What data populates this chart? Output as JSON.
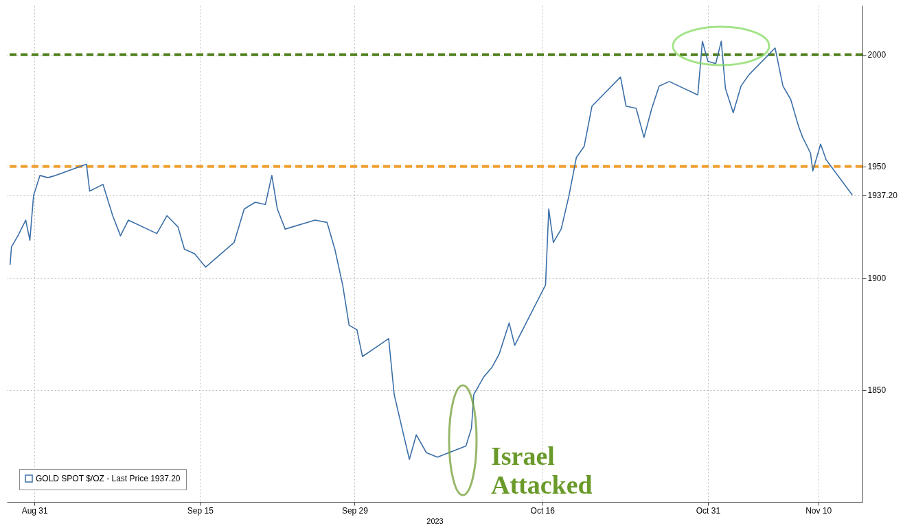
{
  "chart_data": {
    "type": "line",
    "xlabel": "2023",
    "x": [
      "2023-08-28T19:00",
      "2023-08-28T22:00",
      "2023-08-29T12:00",
      "2023-08-30T05:00",
      "2023-08-30T14:00",
      "2023-08-30T22:00",
      "2023-08-31T12:00",
      "2023-09-01T05:00",
      "2023-09-01T22:00",
      "2023-09-04T17:00",
      "2023-09-05T00:00",
      "2023-09-06T05:00",
      "2023-09-07T02:00",
      "2023-09-07T19:00",
      "2023-09-08T12:00",
      "2023-09-11T02:00",
      "2023-09-12T00:00",
      "2023-09-13T00:00",
      "2023-09-13T14:00",
      "2023-09-14T12:00",
      "2023-09-15T12:00",
      "2023-09-18T02:00",
      "2023-09-19T00:00",
      "2023-09-20T00:00",
      "2023-09-20T22:00",
      "2023-09-21T12:00",
      "2023-09-22T00:00",
      "2023-09-22T17:00",
      "2023-09-25T10:00",
      "2023-09-26T12:00",
      "2023-09-27T05:00",
      "2023-09-27T22:00",
      "2023-09-28T12:00",
      "2023-09-29T05:00",
      "2023-09-29T17:00",
      "2023-10-02T02:00",
      "2023-10-02T14:00",
      "2023-10-03T07:00",
      "2023-10-03T23:00",
      "2023-10-04T14:00",
      "2023-10-05T12:00",
      "2023-10-06T12:00",
      "2023-10-09T02:00",
      "2023-10-09T14:00",
      "2023-10-09T19:00",
      "2023-10-10T17:00",
      "2023-10-11T10:00",
      "2023-10-12T02:00",
      "2023-10-13T00:00",
      "2023-10-13T12:00",
      "2023-10-16T07:00",
      "2023-10-16T14:00",
      "2023-10-17T00:00",
      "2023-10-17T17:00",
      "2023-10-18T10:00",
      "2023-10-19T02:00",
      "2023-10-19T19:00",
      "2023-10-20T12:00",
      "2023-10-23T02:00",
      "2023-10-23T14:00",
      "2023-10-24T12:00",
      "2023-10-25T05:00",
      "2023-10-25T22:00",
      "2023-10-26T14:00",
      "2023-10-27T12:00",
      "2023-10-30T02:00",
      "2023-10-30T12:00",
      "2023-10-31T00:00",
      "2023-10-31T17:00",
      "2023-11-01T05:00",
      "2023-11-01T14:00",
      "2023-11-02T07:00",
      "2023-11-03T00:00",
      "2023-11-03T17:00",
      "2023-11-06T02:00",
      "2023-11-06T19:00",
      "2023-11-07T12:00",
      "2023-11-08T05:00",
      "2023-11-08T14:00",
      "2023-11-09T07:00",
      "2023-11-09T12:00",
      "2023-11-10T05:00",
      "2023-11-10T17:00",
      "2023-11-13T02:00"
    ],
    "series": [
      {
        "name": "GOLD SPOT $/OZ - Last Price 1937.20",
        "color": "#3b6fa8",
        "values": [
          1906,
          1914,
          1919,
          1926,
          1917,
          1937,
          1946,
          1945,
          1946,
          1951,
          1939,
          1942,
          1928,
          1919,
          1926,
          1920,
          1928,
          1923,
          1913,
          1911,
          1905,
          1916,
          1931,
          1934,
          1933,
          1946,
          1931,
          1922,
          1926,
          1925,
          1913,
          1897,
          1879,
          1877,
          1865,
          1873,
          1848,
          1833,
          1819,
          1830,
          1822,
          1820,
          1825,
          1833,
          1848,
          1856,
          1860,
          1866,
          1880,
          1870,
          1897,
          1931,
          1916,
          1922,
          1937,
          1954,
          1959,
          1977,
          1990,
          1977,
          1976,
          1963,
          1976,
          1986,
          1988,
          1982,
          2006,
          1997,
          1996,
          2006,
          1985,
          1974,
          1986,
          1991,
          2003,
          1986,
          1980,
          1968,
          1963,
          1956,
          1948,
          1960,
          1953,
          1937.2
        ]
      }
    ],
    "xlim": [
      "2023-08-28T12:00",
      "2023-11-14T00:00"
    ],
    "xticks": [
      {
        "value": "2023-08-31",
        "label": "Aug 31"
      },
      {
        "value": "2023-09-15",
        "label": "Sep 15"
      },
      {
        "value": "2023-09-29",
        "label": "Sep 29"
      },
      {
        "value": "2023-10-16",
        "label": "Oct 16"
      },
      {
        "value": "2023-10-31",
        "label": "Oct 31"
      },
      {
        "value": "2023-11-10",
        "label": "Nov 10"
      }
    ],
    "ylim": [
      1800,
      2022
    ],
    "yticks": [
      {
        "value": 1850,
        "label": "1850"
      },
      {
        "value": 1900,
        "label": "1900"
      },
      {
        "value": 1937.2,
        "label": "1937.20"
      },
      {
        "value": 1950,
        "label": "1950"
      },
      {
        "value": 2000,
        "label": "2000"
      }
    ],
    "grid": true,
    "legend": "bottom left",
    "marker": "none",
    "line_style": "solid",
    "ref_lines": [
      {
        "axis": "y",
        "value": 2000,
        "color": "#4f7f1a",
        "line_style": "dashed"
      },
      {
        "axis": "y",
        "value": 1950,
        "color": "#f0a030",
        "line_style": "dashed"
      }
    ],
    "annotations": [
      "Israel\nAttacked"
    ]
  }
}
